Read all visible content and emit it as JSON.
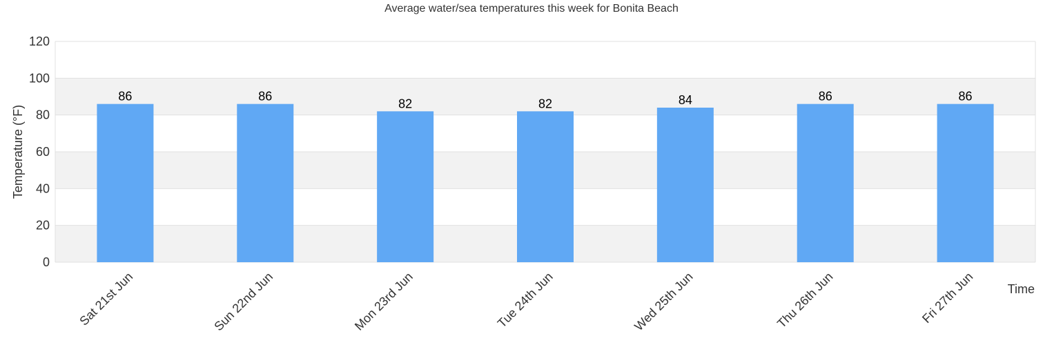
{
  "chart_data": {
    "type": "bar",
    "title": "Average water/sea temperatures this week for Bonita Beach",
    "xlabel": "Time",
    "ylabel": "Temperature (°F)",
    "categories": [
      "Sat 21st Jun",
      "Sun 22nd Jun",
      "Mon 23rd Jun",
      "Tue 24th Jun",
      "Wed 25th Jun",
      "Thu 26th Jun",
      "Fri 27th Jun"
    ],
    "values": [
      86,
      86,
      82,
      82,
      84,
      86,
      86
    ],
    "ylim": [
      0,
      120
    ],
    "yticks": [
      0,
      20,
      40,
      60,
      80,
      100,
      120
    ],
    "grid": true,
    "legend": "none",
    "colors": {
      "bar": "#60a8f4",
      "band": "#f2f2f2",
      "gridline": "#e0e0e0"
    }
  }
}
